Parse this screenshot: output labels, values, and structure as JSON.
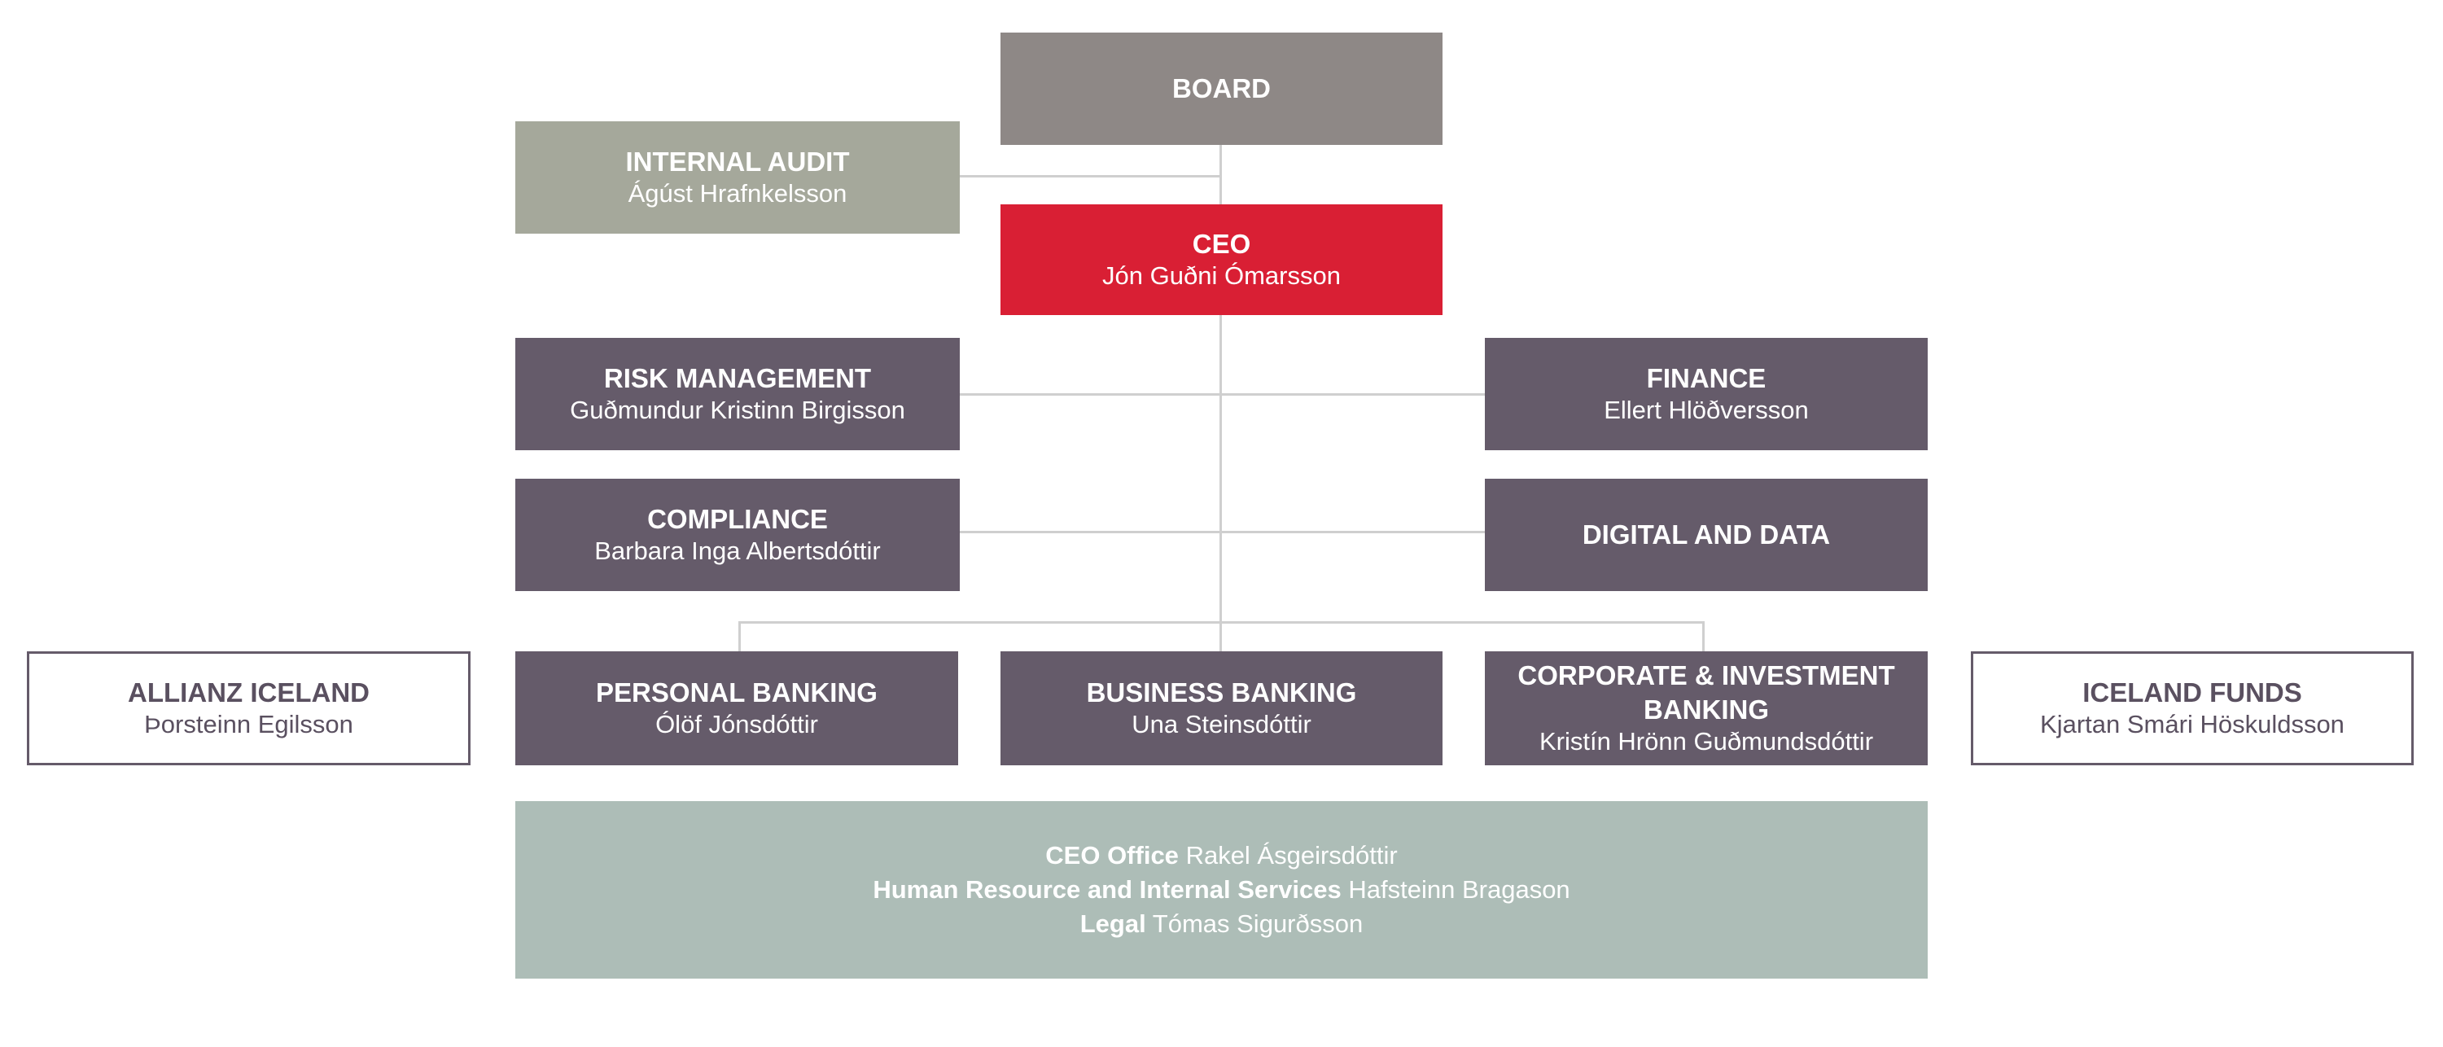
{
  "colors": {
    "board": "#8e8886",
    "audit": "#a5a89b",
    "ceo": "#d91f34",
    "unit": "#655b6a",
    "support": "#adbdb7",
    "line": "#cfcfcf"
  },
  "board": {
    "title": "BOARD"
  },
  "internal_audit": {
    "title": "INTERNAL AUDIT",
    "name": "Ágúst Hrafnkelsson"
  },
  "ceo": {
    "title": "CEO",
    "name": "Jón Guðni Ómarsson"
  },
  "risk": {
    "title": "RISK MANAGEMENT",
    "name": "Guðmundur Kristinn Birgisson"
  },
  "finance": {
    "title": "FINANCE",
    "name": "Ellert Hlöðversson"
  },
  "compliance": {
    "title": "COMPLIANCE",
    "name": "Barbara Inga Albertsdóttir"
  },
  "digital": {
    "title": "DIGITAL AND DATA"
  },
  "allianz": {
    "title": "ALLIANZ ICELAND",
    "name": "Þorsteinn Egilsson"
  },
  "personal": {
    "title": "PERSONAL BANKING",
    "name": "Ólöf Jónsdóttir"
  },
  "business": {
    "title": "BUSINESS BANKING",
    "name": "Una Steinsdóttir"
  },
  "corporate": {
    "title": "CORPORATE & INVESTMENT BANKING",
    "name": "Kristín Hrönn Guðmundsdóttir"
  },
  "funds": {
    "title": "ICELAND FUNDS",
    "name": "Kjartan Smári Höskuldsson"
  },
  "support": [
    {
      "unit": "CEO Office",
      "name": "Rakel Ásgeirsdóttir"
    },
    {
      "unit": "Human Resource and Internal Services",
      "name": "Hafsteinn Bragason"
    },
    {
      "unit": "Legal",
      "name": "Tómas Sigurðsson"
    }
  ]
}
